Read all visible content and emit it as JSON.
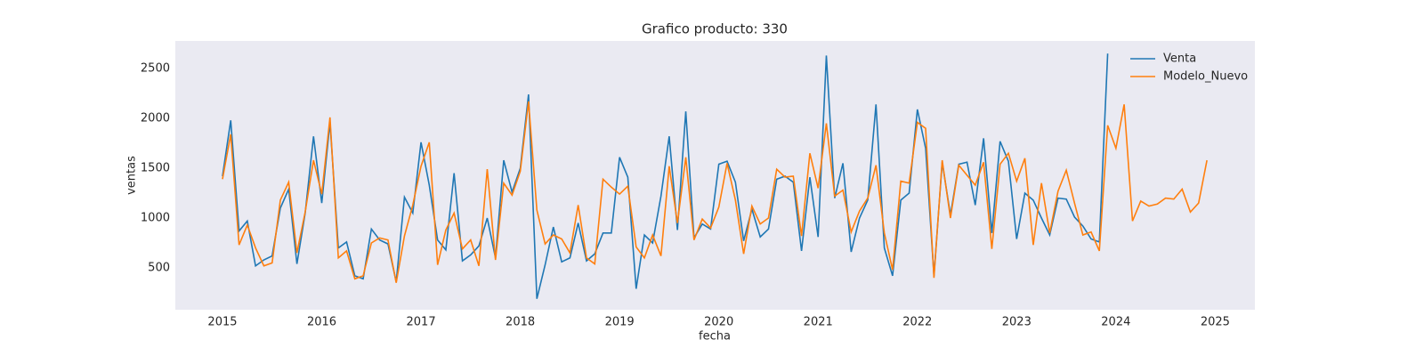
{
  "chart_data": {
    "type": "line",
    "title": "Grafico producto: 330",
    "x_label": "fecha",
    "y_label": "ventas",
    "x": [
      2015,
      2015.083,
      2015.167,
      2015.25,
      2015.333,
      2015.417,
      2015.5,
      2015.583,
      2015.667,
      2015.75,
      2015.833,
      2015.917,
      2016,
      2016.083,
      2016.167,
      2016.25,
      2016.333,
      2016.417,
      2016.5,
      2016.583,
      2016.667,
      2016.75,
      2016.833,
      2016.917,
      2017,
      2017.083,
      2017.167,
      2017.25,
      2017.333,
      2017.417,
      2017.5,
      2017.583,
      2017.667,
      2017.75,
      2017.833,
      2017.917,
      2018,
      2018.083,
      2018.167,
      2018.25,
      2018.333,
      2018.417,
      2018.5,
      2018.583,
      2018.667,
      2018.75,
      2018.833,
      2018.917,
      2019,
      2019.083,
      2019.167,
      2019.25,
      2019.333,
      2019.417,
      2019.5,
      2019.583,
      2019.667,
      2019.75,
      2019.833,
      2019.917,
      2020,
      2020.083,
      2020.167,
      2020.25,
      2020.333,
      2020.417,
      2020.5,
      2020.583,
      2020.667,
      2020.75,
      2020.833,
      2020.917,
      2021,
      2021.083,
      2021.167,
      2021.25,
      2021.333,
      2021.417,
      2021.5,
      2021.583,
      2021.667,
      2021.75,
      2021.833,
      2021.917,
      2022,
      2022.083,
      2022.167,
      2022.25,
      2022.333,
      2022.417,
      2022.5,
      2022.583,
      2022.667,
      2022.75,
      2022.833,
      2022.917,
      2023,
      2023.083,
      2023.167,
      2023.25,
      2023.333,
      2023.417,
      2023.5,
      2023.583,
      2023.667,
      2023.75,
      2023.833,
      2023.917,
      2024,
      2024.083,
      2024.167,
      2024.25,
      2024.333,
      2024.417,
      2024.5,
      2024.583,
      2024.667,
      2024.75,
      2024.833,
      2024.917
    ],
    "series": [
      {
        "name": "Venta",
        "color": "#1f77b4",
        "values": [
          1420,
          1980,
          870,
          970,
          520,
          580,
          620,
          1100,
          1290,
          540,
          1050,
          1820,
          1150,
          1960,
          700,
          760,
          420,
          390,
          890,
          780,
          740,
          360,
          1210,
          1050,
          1760,
          1330,
          780,
          680,
          1450,
          570,
          630,
          720,
          1000,
          600,
          1580,
          1260,
          1500,
          2240,
          190,
          530,
          910,
          560,
          600,
          950,
          570,
          640,
          850,
          850,
          1610,
          1410,
          290,
          830,
          750,
          1220,
          1820,
          880,
          2070,
          800,
          940,
          890,
          1540,
          1570,
          1360,
          770,
          1090,
          810,
          890,
          1390,
          1420,
          1360,
          670,
          1410,
          810,
          2630,
          1200,
          1550,
          660,
          1000,
          1180,
          2140,
          700,
          420,
          1180,
          1250,
          2090,
          1700,
          420,
          1560,
          1030,
          1540,
          1560,
          1130,
          1800,
          850,
          1770,
          1570,
          790,
          1250,
          1180,
          1000,
          830,
          1200,
          1190,
          1010,
          920,
          790,
          760,
          2650,
          null,
          null,
          null,
          null,
          null,
          null,
          null,
          null,
          null,
          null,
          null,
          null
        ]
      },
      {
        "name": "Modelo_Nuevo",
        "color": "#ff7f0e",
        "values": [
          1390,
          1840,
          730,
          930,
          700,
          520,
          550,
          1180,
          1360,
          650,
          1060,
          1580,
          1240,
          2010,
          600,
          670,
          390,
          420,
          750,
          800,
          780,
          350,
          820,
          1130,
          1520,
          1760,
          530,
          880,
          1050,
          690,
          780,
          520,
          1490,
          580,
          1350,
          1230,
          1470,
          2170,
          1080,
          740,
          830,
          790,
          650,
          1130,
          600,
          540,
          1390,
          1310,
          1240,
          1320,
          710,
          600,
          830,
          620,
          1520,
          950,
          1610,
          780,
          990,
          900,
          1110,
          1550,
          1180,
          640,
          1120,
          940,
          1000,
          1490,
          1410,
          1420,
          820,
          1650,
          1300,
          1950,
          1220,
          1280,
          860,
          1070,
          1200,
          1530,
          850,
          480,
          1370,
          1350,
          1960,
          1900,
          400,
          1580,
          1000,
          1530,
          1430,
          1330,
          1560,
          690,
          1540,
          1650,
          1370,
          1600,
          730,
          1350,
          850,
          1270,
          1480,
          1150,
          830,
          860,
          670,
          1930,
          1700,
          2140,
          970,
          1170,
          1120,
          1140,
          1200,
          1190,
          1290,
          1060,
          1150,
          1580
        ]
      }
    ],
    "xlim": [
      2014.525,
      2025.4
    ],
    "xticks": [
      2015,
      2016,
      2017,
      2018,
      2019,
      2020,
      2021,
      2022,
      2023,
      2024,
      2025
    ],
    "ylim": [
      80,
      2777
    ],
    "yticks": [
      500,
      1000,
      1500,
      2000,
      2500
    ],
    "grid": false,
    "legend": "upper right",
    "background": "#eaeaf2"
  }
}
